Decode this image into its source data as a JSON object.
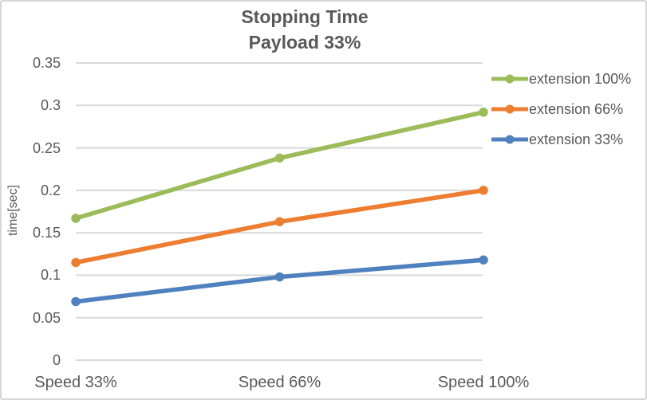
{
  "chart_data": {
    "type": "line",
    "title": "Stopping Time",
    "subtitle": "Payload 33%",
    "categories": [
      "Speed 33%",
      "Speed 66%",
      "Speed 100%"
    ],
    "series": [
      {
        "name": "extension 100%",
        "color": "#9CBB59",
        "values": [
          0.167,
          0.238,
          0.292
        ]
      },
      {
        "name": "extension 66%",
        "color": "#ED7D31",
        "values": [
          0.115,
          0.163,
          0.2
        ]
      },
      {
        "name": "extension 33%",
        "color": "#4E81BD",
        "values": [
          0.069,
          0.098,
          0.118
        ]
      }
    ],
    "xlabel": "",
    "ylabel": "time[sec]",
    "ylim": [
      0,
      0.35
    ],
    "y_tick_step": 0.05,
    "y_tick_labels": [
      "0",
      "0.05",
      "0.1",
      "0.15",
      "0.2",
      "0.25",
      "0.3",
      "0.35"
    ],
    "grid": true,
    "legend_position": "right",
    "marker": "circle"
  },
  "style_colors": {
    "text": "#595959",
    "gridline": "#D9D9D9",
    "border": "#D6D6D6",
    "background": "#FFFFFF"
  }
}
